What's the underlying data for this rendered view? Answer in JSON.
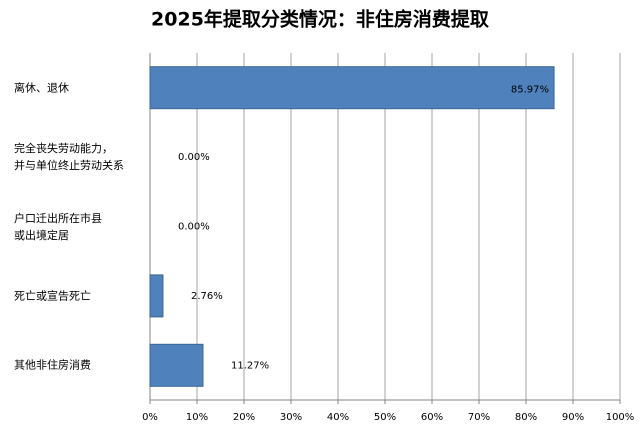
{
  "chart_data": {
    "type": "hbar",
    "title": "2025年提取分类情况：非住房消费提取",
    "categories": [
      "离休、退休",
      "完全丧失劳动能力，\n并与单位终止劳动关系",
      "户口迁出所在市县\n或出境定居",
      "死亡或宣告死亡",
      "其他非住房消费"
    ],
    "values": [
      85.97,
      0,
      0,
      2.76,
      11.27
    ],
    "value_labels": [
      "85.97%",
      "0.00%",
      "0.00%",
      "2.76%",
      "11.27%"
    ],
    "color": "#4f81bd",
    "xlim": [
      0,
      100
    ],
    "xticks": [
      {
        "value": 0,
        "label": "0%"
      },
      {
        "value": 10,
        "label": "10%"
      },
      {
        "value": 20,
        "label": "20%"
      },
      {
        "value": 30,
        "label": "30%"
      },
      {
        "value": 40,
        "label": "40%"
      },
      {
        "value": 50,
        "label": "50%"
      },
      {
        "value": 60,
        "label": "60%"
      },
      {
        "value": 70,
        "label": "70%"
      },
      {
        "value": 80,
        "label": "80%"
      },
      {
        "value": 90,
        "label": "90%"
      },
      {
        "value": 100,
        "label": "100%"
      }
    ],
    "grid": true
  }
}
